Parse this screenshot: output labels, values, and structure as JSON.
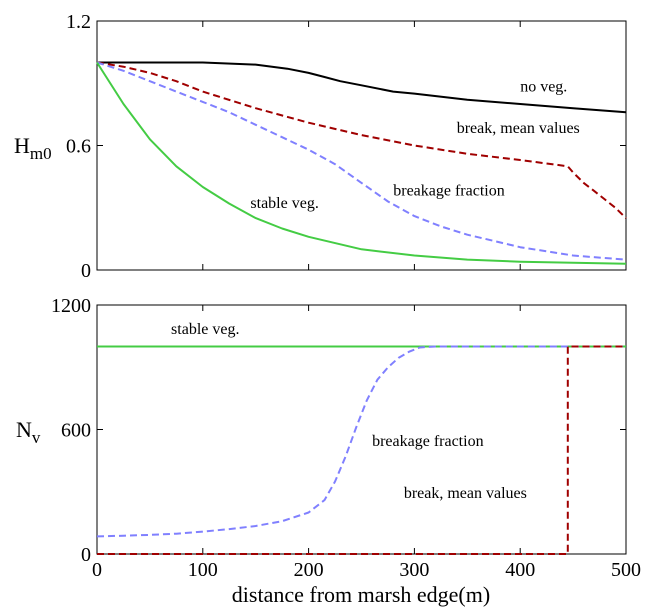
{
  "colors": {
    "no_veg": "#000000",
    "break_mean": "#a00000",
    "breakage_fraction": "#8080ff",
    "stable_veg": "#44cc44"
  },
  "chart_data": [
    {
      "type": "line",
      "ylabel_main": "H",
      "ylabel_sub": "m0",
      "xlim": [
        0,
        500
      ],
      "ylim": [
        0,
        1.2
      ],
      "xticks": [
        0,
        100,
        200,
        300,
        400,
        500
      ],
      "yticks": [
        0,
        0.6,
        1.2
      ],
      "ytick_labels": [
        "0",
        "0.6",
        "1.2"
      ],
      "series": [
        {
          "name": "no veg.",
          "style": "solid",
          "color_key": "no_veg",
          "x": [
            0,
            50,
            100,
            150,
            180,
            200,
            215,
            230,
            250,
            280,
            300,
            350,
            400,
            450,
            500
          ],
          "y": [
            1.0,
            1.0,
            1.0,
            0.99,
            0.97,
            0.95,
            0.93,
            0.91,
            0.89,
            0.86,
            0.85,
            0.82,
            0.8,
            0.78,
            0.76
          ]
        },
        {
          "name": "break, mean values",
          "style": "dashed",
          "color_key": "break_mean",
          "x": [
            0,
            25,
            50,
            75,
            100,
            150,
            200,
            250,
            300,
            350,
            400,
            445,
            450,
            460,
            470,
            480,
            490,
            500
          ],
          "y": [
            1.0,
            0.98,
            0.95,
            0.91,
            0.86,
            0.78,
            0.71,
            0.65,
            0.6,
            0.56,
            0.53,
            0.5,
            0.47,
            0.42,
            0.38,
            0.34,
            0.3,
            0.25
          ]
        },
        {
          "name": "breakage fraction",
          "style": "dashed",
          "color_key": "breakage_fraction",
          "x": [
            0,
            25,
            50,
            75,
            100,
            125,
            150,
            175,
            200,
            225,
            250,
            275,
            300,
            325,
            350,
            375,
            400,
            425,
            450,
            475,
            500
          ],
          "y": [
            1.0,
            0.96,
            0.91,
            0.86,
            0.81,
            0.76,
            0.7,
            0.64,
            0.58,
            0.51,
            0.42,
            0.33,
            0.26,
            0.21,
            0.17,
            0.14,
            0.11,
            0.09,
            0.07,
            0.06,
            0.05
          ]
        },
        {
          "name": "stable veg.",
          "style": "solid",
          "color_key": "stable_veg",
          "x": [
            0,
            25,
            50,
            75,
            100,
            125,
            150,
            175,
            200,
            250,
            300,
            350,
            400,
            450,
            500
          ],
          "y": [
            1.0,
            0.8,
            0.63,
            0.5,
            0.4,
            0.32,
            0.25,
            0.2,
            0.16,
            0.1,
            0.07,
            0.05,
            0.04,
            0.035,
            0.03
          ]
        }
      ],
      "annotations": [
        {
          "text": "no veg.",
          "x": 400,
          "y": 0.86
        },
        {
          "text": "break, mean values",
          "x": 340,
          "y": 0.66
        },
        {
          "text": "breakage fraction",
          "x": 280,
          "y": 0.36
        },
        {
          "text": "stable veg.",
          "x": 145,
          "y": 0.3
        }
      ]
    },
    {
      "type": "line",
      "ylabel_main": "N",
      "ylabel_sub": "v",
      "xlabel": "distance from marsh edge(m)",
      "xlim": [
        0,
        500
      ],
      "ylim": [
        0,
        1200
      ],
      "xticks": [
        0,
        100,
        200,
        300,
        400,
        500
      ],
      "xtick_labels": [
        "0",
        "100",
        "200",
        "300",
        "400",
        "500"
      ],
      "yticks": [
        0,
        600,
        1200
      ],
      "ytick_labels": [
        "0",
        "600",
        "1200"
      ],
      "series": [
        {
          "name": "stable veg.",
          "style": "solid",
          "color_key": "stable_veg",
          "x": [
            0,
            500
          ],
          "y": [
            1000,
            1000
          ]
        },
        {
          "name": "breakage fraction",
          "style": "dashed",
          "color_key": "breakage_fraction",
          "x": [
            0,
            25,
            50,
            75,
            100,
            125,
            150,
            175,
            200,
            215,
            225,
            235,
            245,
            255,
            265,
            275,
            285,
            295,
            305,
            320,
            350,
            400,
            450,
            500
          ],
          "y": [
            85,
            88,
            92,
            98,
            108,
            120,
            135,
            158,
            200,
            260,
            350,
            470,
            610,
            740,
            840,
            900,
            945,
            975,
            995,
            1000,
            1000,
            1000,
            1000,
            1000
          ]
        },
        {
          "name": "break, mean values",
          "style": "dashed",
          "color_key": "break_mean",
          "x": [
            0,
            445,
            445,
            500
          ],
          "y": [
            0,
            0,
            1000,
            1000
          ]
        }
      ],
      "annotations": [
        {
          "text": "stable veg.",
          "x": 70,
          "y": 1060
        },
        {
          "text": "breakage fraction",
          "x": 260,
          "y": 520
        },
        {
          "text": "break, mean values",
          "x": 290,
          "y": 270
        }
      ]
    }
  ]
}
